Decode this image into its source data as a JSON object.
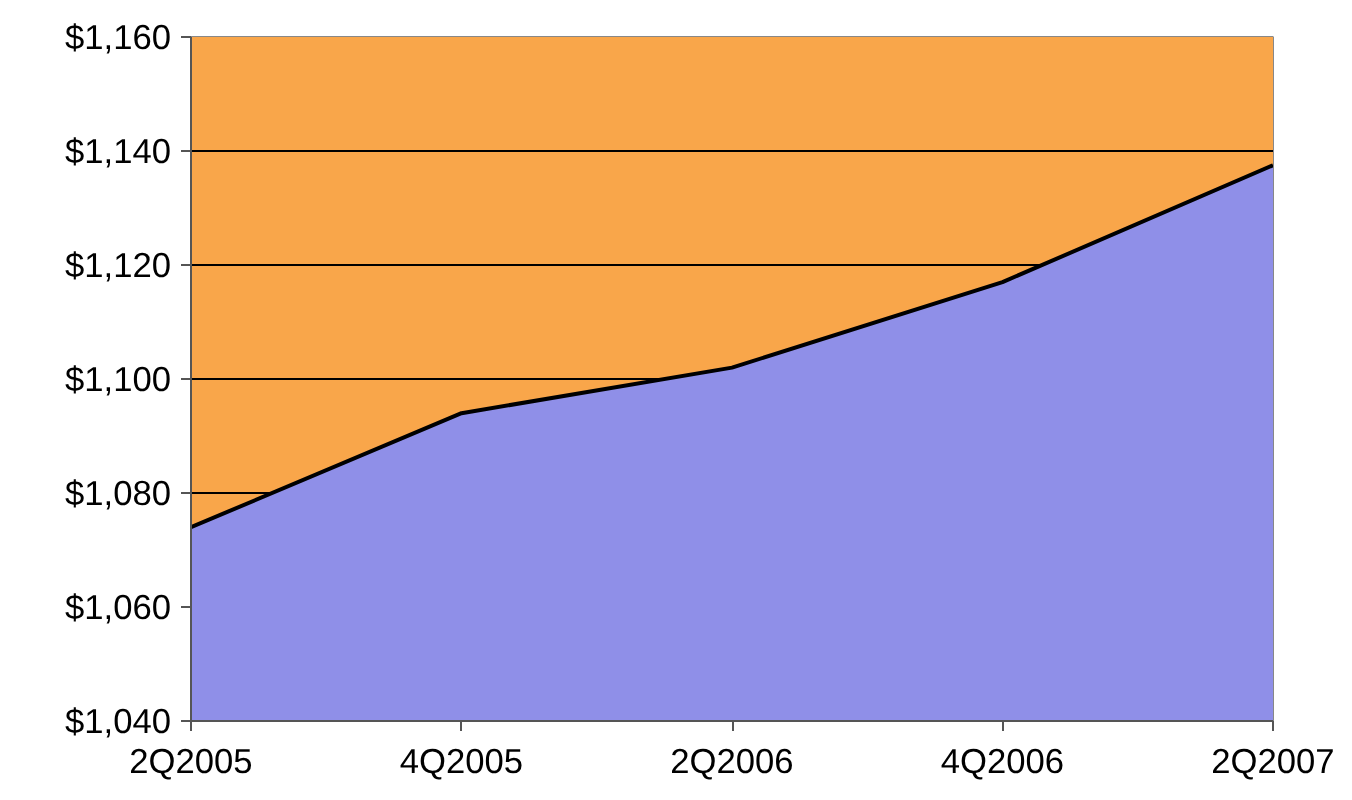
{
  "chart_data": {
    "type": "area",
    "categories": [
      "2Q2005",
      "4Q2005",
      "2Q2006",
      "4Q2006",
      "2Q2007"
    ],
    "series": [
      {
        "color": "#8f8fe8",
        "values": [
          1074,
          1094,
          1102,
          1117,
          1137.5
        ]
      }
    ],
    "ylim": [
      1040,
      1160
    ],
    "yticks": [
      {
        "value": 1040,
        "label": "$1,040"
      },
      {
        "value": 1060,
        "label": "$1,060"
      },
      {
        "value": 1080,
        "label": "$1,080"
      },
      {
        "value": 1100,
        "label": "$1,100"
      },
      {
        "value": 1120,
        "label": "$1,120"
      },
      {
        "value": 1140,
        "label": "$1,140"
      },
      {
        "value": 1160,
        "label": "$1,160"
      }
    ],
    "bands": [
      {
        "axis": "y",
        "from": 1040,
        "to": 1160,
        "color": "#f9a64a"
      }
    ],
    "grid": "y"
  }
}
